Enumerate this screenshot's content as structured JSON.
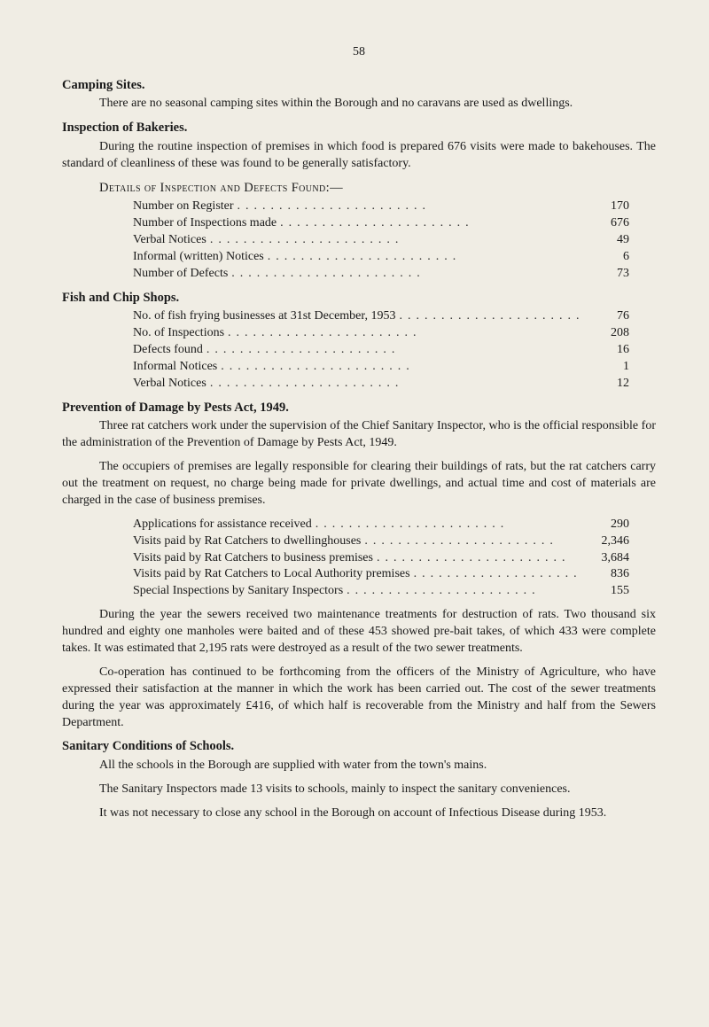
{
  "pageNumber": "58",
  "camping": {
    "heading": "Camping Sites.",
    "text": "There are no seasonal camping sites within the Borough and no caravans are used as dwellings."
  },
  "bakeries": {
    "heading": "Inspection of Bakeries.",
    "intro": "During the routine inspection of premises in which food is prepared 676 visits were made to bakehouses. The standard of cleanliness of these was found to be generally satisfactory.",
    "detailsHeading": "Details of Inspection and Defects Found:—",
    "stats": [
      {
        "label": "Number on Register",
        "value": "170"
      },
      {
        "label": "Number of Inspections made",
        "value": "676"
      },
      {
        "label": "Verbal Notices",
        "value": "49"
      },
      {
        "label": "Informal (written) Notices",
        "value": "6"
      },
      {
        "label": "Number of Defects",
        "value": "73"
      }
    ]
  },
  "fishChip": {
    "heading": "Fish and Chip Shops.",
    "stats": [
      {
        "label": "No. of fish frying businesses at 31st December, 1953",
        "value": "76"
      },
      {
        "label": "No. of Inspections",
        "value": "208"
      },
      {
        "label": "Defects found",
        "value": "16"
      },
      {
        "label": "Informal Notices",
        "value": "1"
      },
      {
        "label": "Verbal Notices",
        "value": "12"
      }
    ]
  },
  "pests": {
    "heading": "Prevention of Damage by Pests Act, 1949.",
    "p1": "Three rat catchers work under the supervision of the Chief Sanitary Inspector, who is the official responsible for the administration of the Prevention of Damage by Pests Act, 1949.",
    "p2": "The occupiers of premises are legally responsible for clearing their buildings of rats, but the rat catchers carry out the treatment on request, no charge being made for private dwellings, and actual time and cost of materials are charged in the case of business premises.",
    "stats": [
      {
        "label": "Applications for assistance received",
        "value": "290"
      },
      {
        "label": "Visits paid by Rat Catchers to dwellinghouses",
        "value": "2,346"
      },
      {
        "label": "Visits paid by Rat Catchers to business premises",
        "value": "3,684"
      },
      {
        "label": "Visits paid by Rat Catchers to Local Authority premises",
        "value": "836"
      },
      {
        "label": "Special Inspections by Sanitary Inspectors",
        "value": "155"
      }
    ],
    "p3": "During the year the sewers received two maintenance treatments for destruction of rats. Two thousand six hundred and eighty one manholes were baited and of these 453 showed pre-bait takes, of which 433 were complete takes. It was estimated that 2,195 rats were destroyed as a result of the two sewer treatments.",
    "p4": "Co-operation has continued to be forthcoming from the officers of the Ministry of Agriculture, who have expressed their satisfaction at the manner in which the work has been carried out. The cost of the sewer treatments during the year was approximately £416, of which half is recoverable from the Ministry and half from the Sewers Department."
  },
  "schools": {
    "heading": "Sanitary Conditions of Schools.",
    "p1": "All the schools in the Borough are supplied with water from the town's mains.",
    "p2": "The Sanitary Inspectors made 13 visits to schools, mainly to inspect the sanitary conveniences.",
    "p3": "It was not necessary to close any school in the Borough on account of Infectious Disease during 1953."
  }
}
